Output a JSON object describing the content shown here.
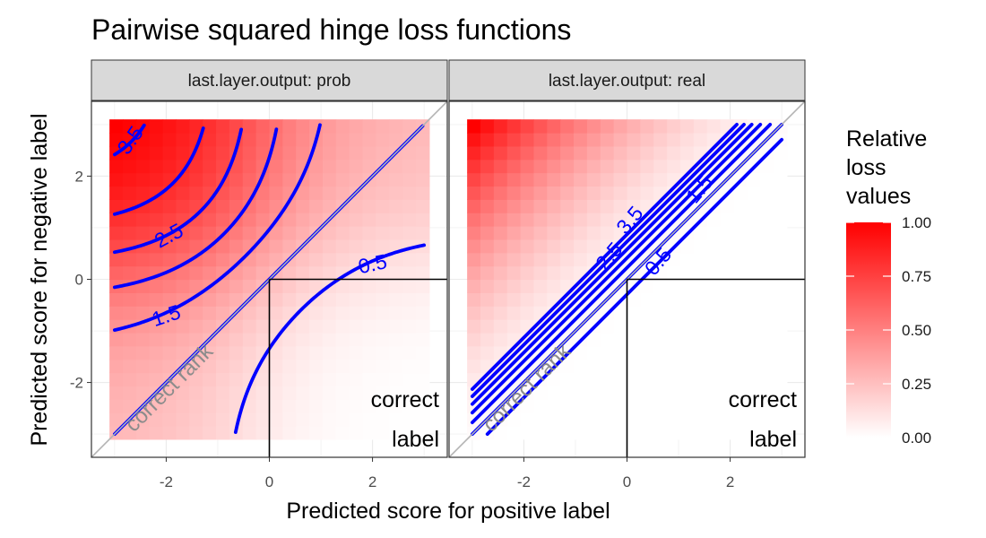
{
  "chart_data": {
    "type": "heatmap",
    "title": "Pairwise squared hinge loss functions",
    "xlabel": "Predicted score for positive label",
    "ylabel": "Predicted score for negative label",
    "xlim": [
      -3.45,
      3.45
    ],
    "ylim": [
      -3.45,
      3.45
    ],
    "x_ticks": [
      -2,
      0,
      2
    ],
    "y_ticks": [
      -2,
      0,
      2
    ],
    "grid": true,
    "fill_low": "#ffffff",
    "fill_high": "#ff0000",
    "contour_color": "#0000ff",
    "panels": [
      {
        "strip": "last.layer.output: prob",
        "contour_labels": [
          {
            "text": "3.5",
            "x": -2.7,
            "y": 2.7,
            "angle": -55
          },
          {
            "text": "2.5",
            "x": -1.95,
            "y": 0.85,
            "angle": -28
          },
          {
            "text": "1.5",
            "x": -2.0,
            "y": -0.7,
            "angle": -18
          },
          {
            "text": "0.5",
            "x": 2.0,
            "y": 0.3,
            "angle": -12
          }
        ]
      },
      {
        "strip": "last.layer.output: real",
        "contour_labels": [
          {
            "text": "2.5",
            "x": -0.35,
            "y": 0.45,
            "angle": -50
          },
          {
            "text": "3.5",
            "x": 0.05,
            "y": 1.15,
            "angle": -50
          },
          {
            "text": "0.5",
            "x": 0.6,
            "y": 0.35,
            "angle": -50
          },
          {
            "text": "1.5",
            "x": 1.4,
            "y": 1.75,
            "angle": -50
          }
        ]
      }
    ],
    "annotations": {
      "rank": "correct rank",
      "corner_line1": "correct",
      "corner_line2": "label"
    },
    "legend": {
      "title_lines": [
        "Relative",
        "loss",
        "values"
      ],
      "placement": "right",
      "breaks": [
        "1.00",
        "0.75",
        "0.50",
        "0.25",
        "0.00"
      ]
    }
  }
}
